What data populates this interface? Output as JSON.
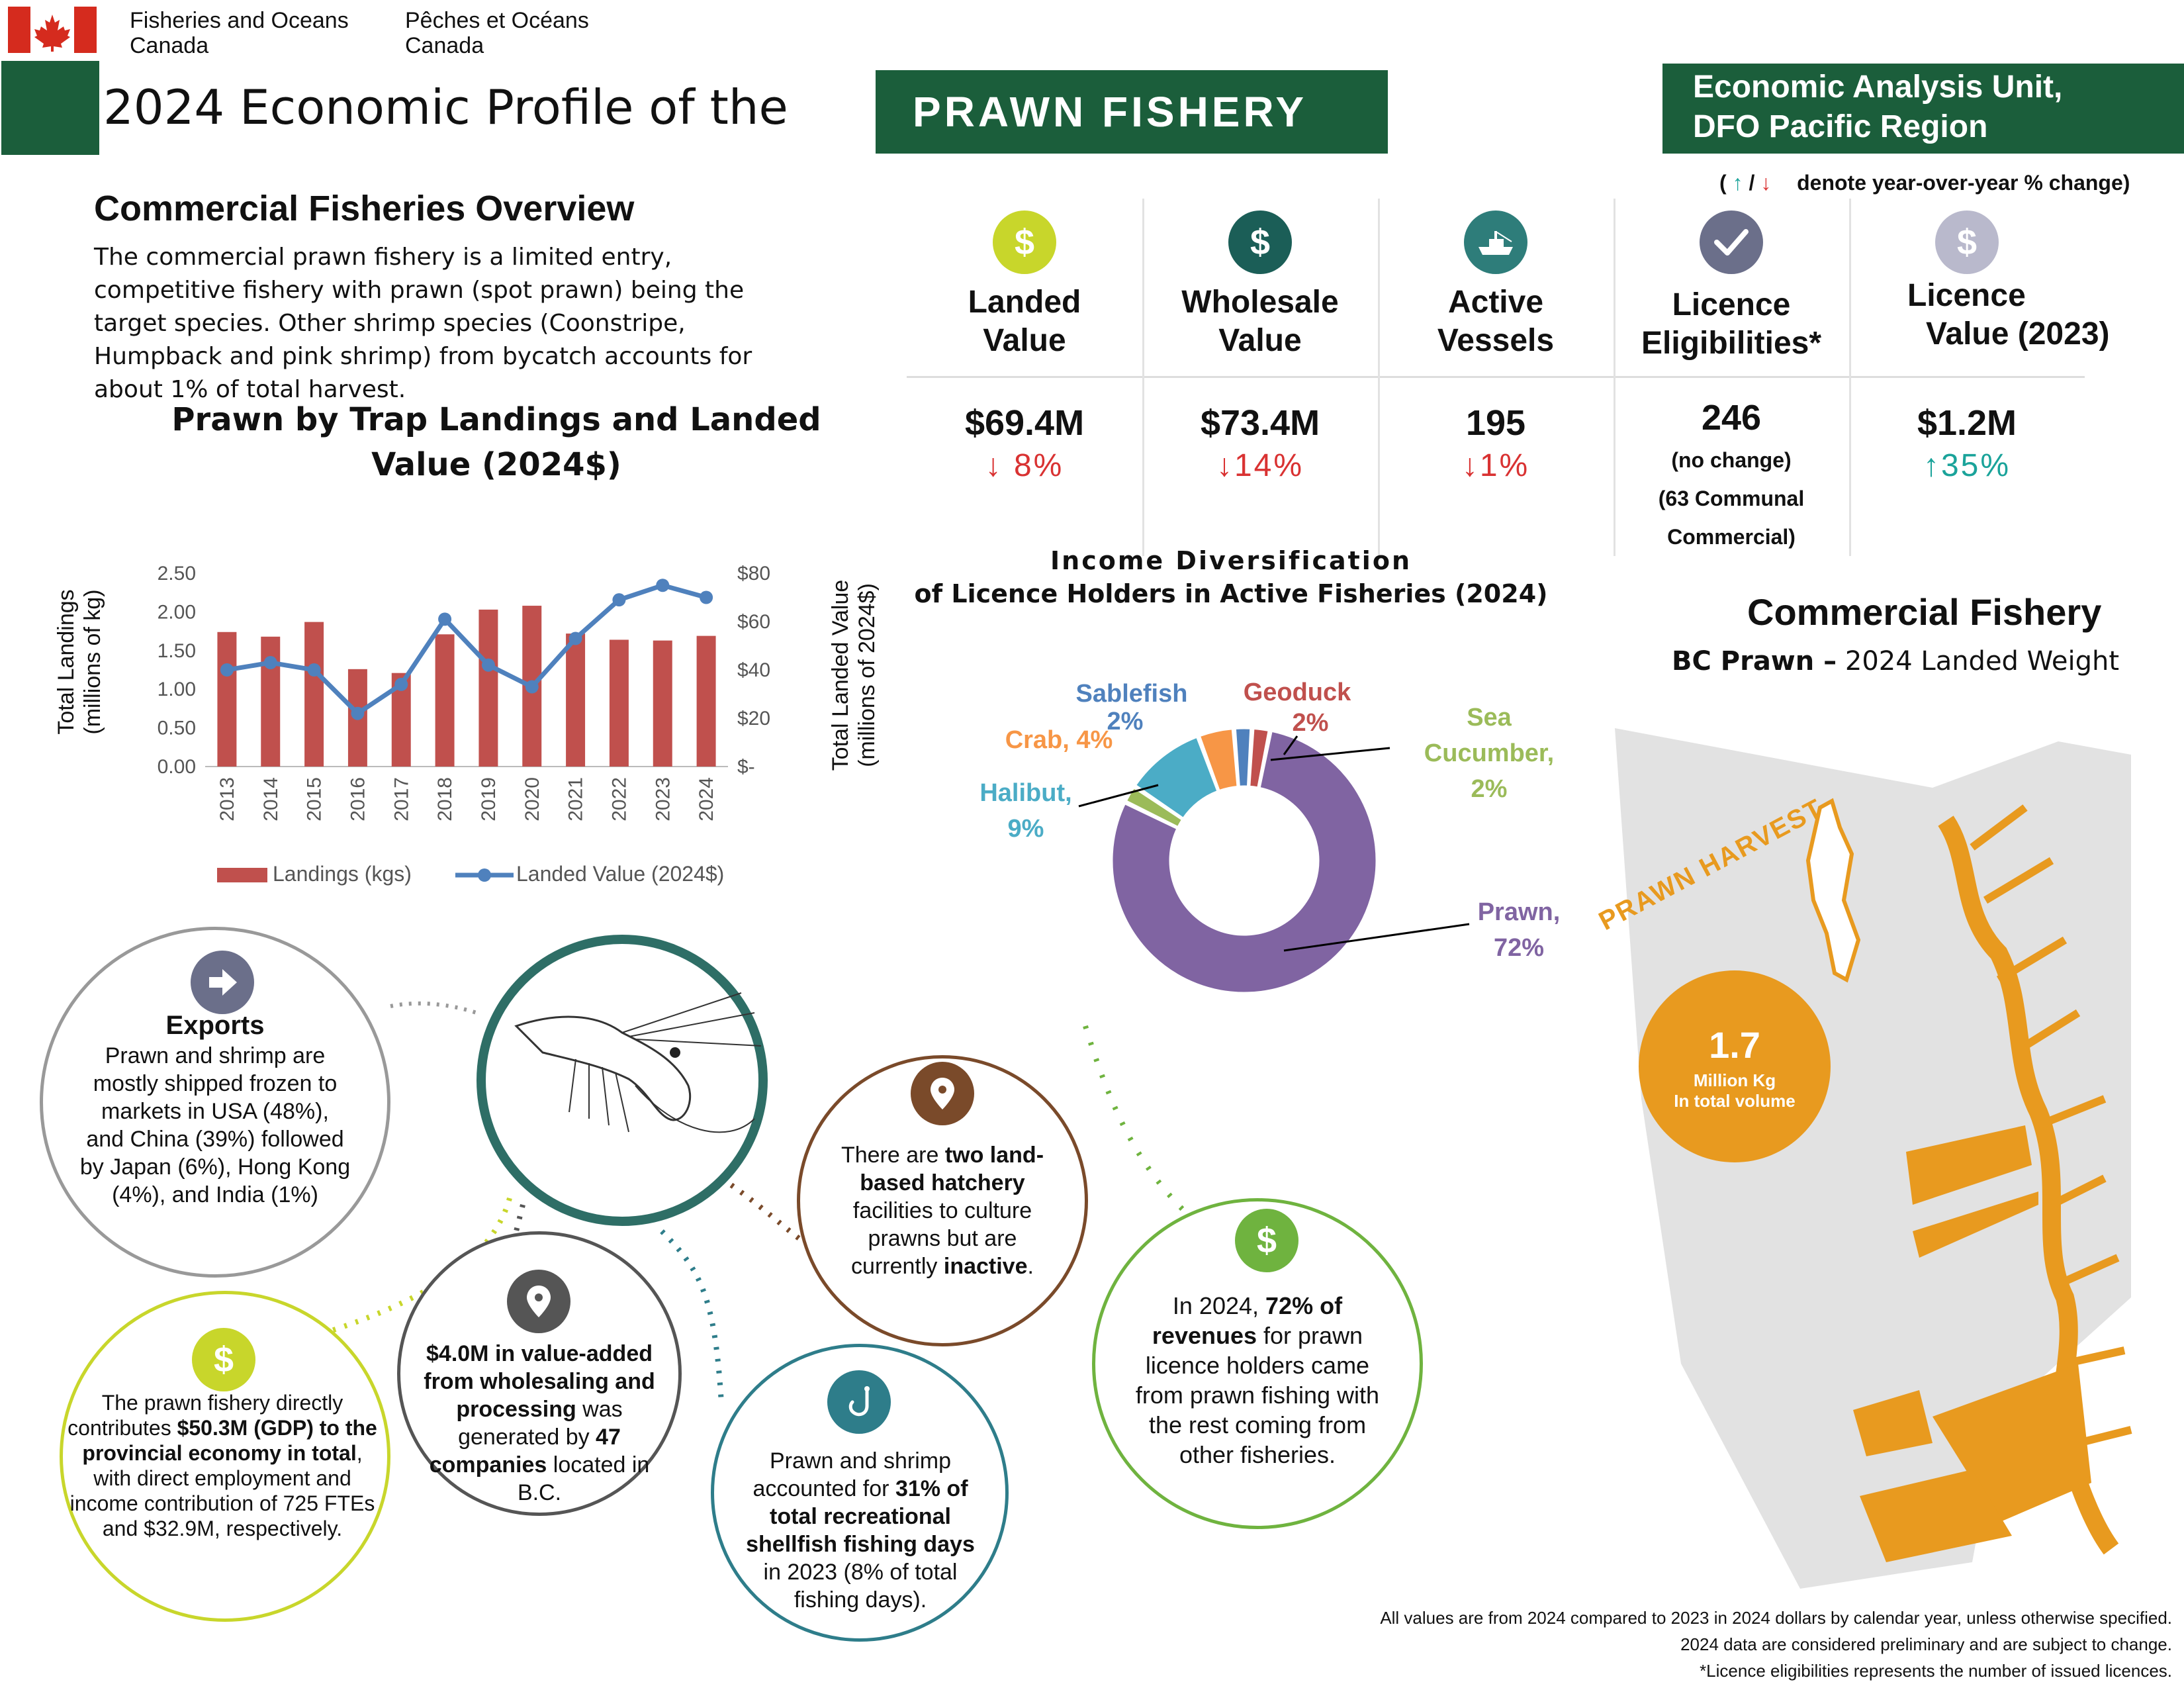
{
  "header": {
    "dept_en_1": "Fisheries and Oceans",
    "dept_en_2": "Canada",
    "dept_fr_1": "Pêches et Océans",
    "dept_fr_2": "Canada",
    "title": "2024 Economic Profile of the",
    "fishery_name": "PRAWN FISHERY",
    "unit_line1": "Economic Analysis Unit,",
    "unit_line2": "DFO Pacific Region",
    "legend_up": "↑",
    "legend_sep": "/",
    "legend_down": "↓",
    "legend_text": "denote year-over-year % change)",
    "legend_open": "("
  },
  "overview": {
    "heading": "Commercial Fisheries Overview",
    "text": "The commercial prawn fishery is a limited entry, competitive fishery with prawn (spot prawn) being the target species. Other shrimp species (Coonstripe, Humpback and pink shrimp) from bycatch accounts for about 1% of total harvest."
  },
  "kpis": [
    {
      "icon": "dollar-icon",
      "title1": "Landed",
      "title2": "Value",
      "value": "$69.4M",
      "change": "↓ 8%",
      "dir": "down",
      "color": "#c8d62b"
    },
    {
      "icon": "dollar-icon",
      "title1": "Wholesale",
      "title2": "Value",
      "value": "$73.4M",
      "change": "↓14%",
      "dir": "down",
      "color": "#1b5e57"
    },
    {
      "icon": "boat-icon",
      "title1": "Active",
      "title2": "Vessels",
      "value": "195",
      "change": "↓1%",
      "dir": "down",
      "color": "#2e7d7a"
    },
    {
      "icon": "checkmark-icon",
      "title1": "Licence",
      "title2": "Eligibilities*",
      "value": "246",
      "change": "(no change)",
      "extra1": "(63 Communal",
      "extra2": "Commercial)",
      "dir": "none",
      "color": "#6b6f8a"
    },
    {
      "icon": "dollar-icon",
      "title1": "Licence",
      "title2": "Value (2023)",
      "value": "$1.2M",
      "change": "↑35%",
      "dir": "up",
      "color": "#b9b9cc"
    }
  ],
  "chart_data": [
    {
      "type": "bar",
      "title": "Prawn by Trap Landings and Landed Value (2024$)",
      "categories": [
        "2013",
        "2014",
        "2015",
        "2016",
        "2017",
        "2018",
        "2019",
        "2020",
        "2021",
        "2022",
        "2023",
        "2024"
      ],
      "series": [
        {
          "name": "Landings (kgs)",
          "type": "bar",
          "axis": "left",
          "color": "#c0504d",
          "values": [
            1.74,
            1.68,
            1.87,
            1.26,
            1.21,
            1.71,
            2.03,
            2.08,
            1.72,
            1.64,
            1.63,
            1.69
          ]
        },
        {
          "name": "Landed Value (2024$)",
          "type": "line",
          "axis": "right",
          "color": "#4f81bd",
          "values": [
            40,
            43,
            40,
            22,
            34,
            61,
            42,
            33,
            53,
            69,
            75,
            70
          ]
        }
      ],
      "ylabel_left_1": "Total Landings",
      "ylabel_left_2": "(millions of kg)",
      "ylabel_right_1": "Total Landed Value",
      "ylabel_right_2": "(millions of 2024$)",
      "ylim_left": [
        0,
        2.5
      ],
      "ylim_right": [
        0,
        80
      ],
      "left_ticks": [
        "0.00",
        "0.50",
        "1.00",
        "1.50",
        "2.00",
        "2.50"
      ],
      "right_ticks": [
        "$-",
        "$20",
        "$40",
        "$60",
        "$80"
      ],
      "legend": "bottom"
    },
    {
      "type": "pie",
      "title_line1": "Income Diversification",
      "title_line2": "of Licence Holders in Active Fisheries (2024)",
      "slices": [
        {
          "label": "Prawn,",
          "pct_label": "72%",
          "value": 72,
          "color": "#8064a2"
        },
        {
          "label": "Sea Cucumber,",
          "pct_label": "2%",
          "value": 2,
          "color": "#9bbb59"
        },
        {
          "label": "Halibut,",
          "pct_label": "9%",
          "value": 9,
          "color": "#4bacc6"
        },
        {
          "label": "Crab, 4%",
          "pct_label": "",
          "value": 4,
          "color": "#f79646"
        },
        {
          "label": "Sablefish",
          "pct_label": "2%",
          "value": 2,
          "color": "#4f81bd"
        },
        {
          "label": "Geoduck",
          "pct_label": "2%",
          "value": 2,
          "color": "#c0504d"
        }
      ]
    }
  ],
  "map": {
    "title": "Commercial Fishery",
    "subtitle_bold": "BC Prawn –",
    "subtitle_rest": "2024 Landed Weight",
    "harvest_label": "PRAWN HARVEST",
    "volume": "1.7",
    "volume_unit1": "Million Kg",
    "volume_unit2": "In total volume"
  },
  "facts": {
    "exports_title": "Exports",
    "exports_text": "Prawn and shrimp are mostly shipped frozen to markets in USA (48%), and China (39%) followed by Japan (6%), Hong Kong (4%), and India (1%)",
    "gdp_pre": "The prawn fishery directly contributes ",
    "gdp_bold": "$50.3M (GDP) to the provincial economy in total",
    "gdp_post": ", with direct employment and income contribution of 725 FTEs and $32.9M, respectively.",
    "value_bold1": "$4.0M in value-added from wholesaling and processing",
    "value_mid": " was generated by ",
    "value_bold2": "47 companies",
    "value_post": " located in B.C.",
    "rec_pre": "Prawn and shrimp accounted for ",
    "rec_bold": "31% of total recreational shellfish fishing days",
    "rec_post": " in 2023 (8% of total fishing days).",
    "hatch_pre": "There are ",
    "hatch_bold": "two land-based hatchery",
    "hatch_mid": " facilities to culture prawns but are currently ",
    "hatch_bold2": "inactive",
    "hatch_post": ".",
    "rev_pre": "In 2024, ",
    "rev_bold": "72% of revenues",
    "rev_post": " for prawn licence holders came from prawn fishing with the rest coming from other fisheries."
  },
  "footnotes": {
    "line1": "All values are from 2024 compared to 2023 in 2024 dollars by calendar year, unless otherwise specified.",
    "line2": "2024 data are considered  preliminary and are subject to change.",
    "line3": "*Licence eligibilities represents the number of issued licences."
  }
}
